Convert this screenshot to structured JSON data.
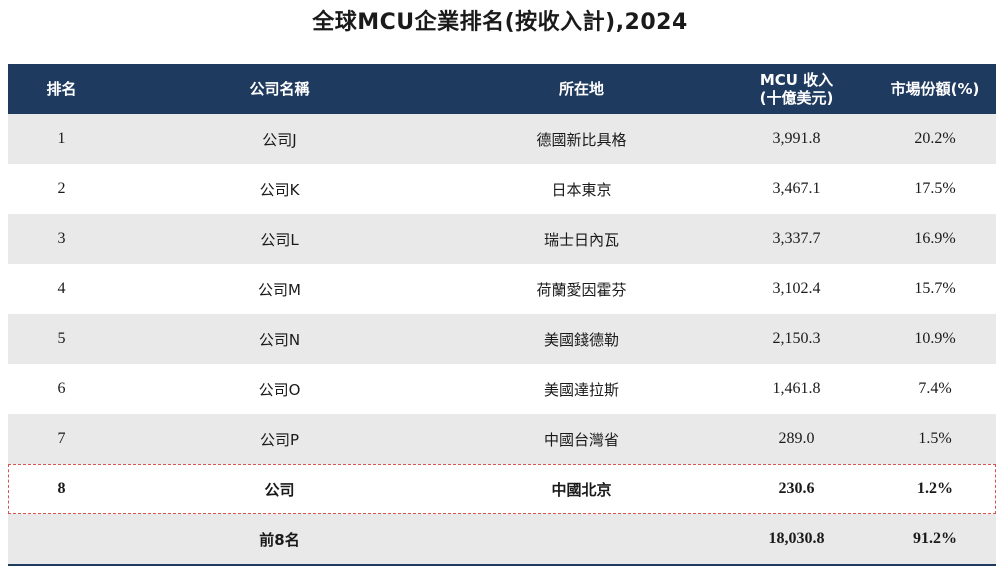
{
  "title": "全球MCU企業排名(按收入計),2024",
  "headers": {
    "rank": "排名",
    "company": "公司名稱",
    "location": "所在地",
    "revenue_line1": "MCU 收入",
    "revenue_line2": "(十億美元)",
    "share": "市場份額(%)"
  },
  "rows": [
    {
      "rank": "1",
      "company": "公司J",
      "location": "德國新比具格",
      "revenue": "3,991.8",
      "share": "20.2%"
    },
    {
      "rank": "2",
      "company": "公司K",
      "location": "日本東京",
      "revenue": "3,467.1",
      "share": "17.5%"
    },
    {
      "rank": "3",
      "company": "公司L",
      "location": "瑞士日內瓦",
      "revenue": "3,337.7",
      "share": "16.9%"
    },
    {
      "rank": "4",
      "company": "公司M",
      "location": "荷蘭愛因霍芬",
      "revenue": "3,102.4",
      "share": "15.7%"
    },
    {
      "rank": "5",
      "company": "公司N",
      "location": "美國錢德勒",
      "revenue": "2,150.3",
      "share": "10.9%"
    },
    {
      "rank": "6",
      "company": "公司O",
      "location": "美國達拉斯",
      "revenue": "1,461.8",
      "share": "7.4%"
    },
    {
      "rank": "7",
      "company": "公司P",
      "location": "中國台灣省",
      "revenue": "289.0",
      "share": "1.5%"
    },
    {
      "rank": "8",
      "company": "公司",
      "location": "中國北京",
      "revenue": "230.6",
      "share": "1.2%"
    }
  ],
  "total": {
    "label": "前8名",
    "revenue": "18,030.8",
    "share": "91.2%"
  },
  "colors": {
    "header_bg": "#1f3a5f",
    "stripe": "#e9e9e9",
    "highlight_border": "#d9534f"
  }
}
